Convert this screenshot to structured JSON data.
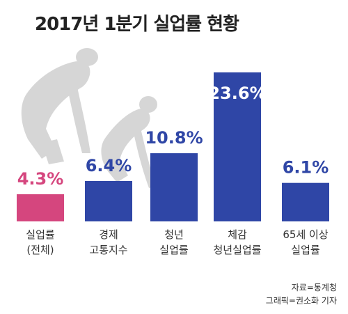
{
  "title": "2017년 1분기 실업률 현황",
  "chart_data": {
    "type": "bar",
    "categories": [
      [
        "실업률",
        "(전체)"
      ],
      [
        "경제",
        "고통지수"
      ],
      [
        "청년",
        "실업률"
      ],
      [
        "체감",
        "청년실업률"
      ],
      [
        "65세 이상",
        "실업률"
      ]
    ],
    "values": [
      4.3,
      6.4,
      10.8,
      23.6,
      6.1
    ],
    "value_labels": [
      "4.3%",
      "6.4%",
      "10.8%",
      "23.6%",
      "6.1%"
    ],
    "colors": [
      "#d5467e",
      "#2f46a6",
      "#2f46a6",
      "#2f46a6",
      "#2f46a6"
    ],
    "label_colors": [
      "#d5467e",
      "#2f46a6",
      "#2f46a6",
      "#2f46a6",
      "#2f46a6"
    ],
    "ylim": [
      0,
      23.6
    ]
  },
  "credits": {
    "source": "자료=통계청",
    "graphic": "그래픽=권소화 기자"
  }
}
